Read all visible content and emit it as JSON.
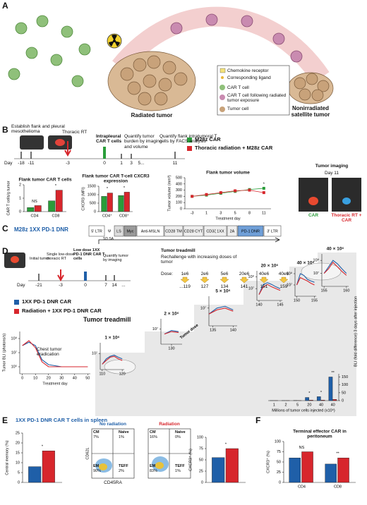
{
  "panels": {
    "A": {
      "letter": "A",
      "legend": [
        "Chemokine receptor",
        "Corresponding ligand",
        "CAR T cell",
        "CAR T cell following radiated tumor exposure",
        "Tumor cell"
      ],
      "radiated": "Radiated tumor",
      "satellite": "Nonirradiated satellite tumor"
    },
    "B": {
      "letter": "B",
      "events": [
        "Establish flank and pleural mesothelioma",
        "Thoracic RT",
        "Intrapleural CAR T cells",
        "Quantify tumor burden by imaging and volume",
        "Quantify flank intratumoral T cells by FACS analysis"
      ],
      "day": "Day",
      "days": [
        "-18",
        "-11",
        "-3",
        "0",
        "1",
        "3",
        "5...",
        "11"
      ],
      "imaging": "Tumor imaging",
      "imaging_day": "Day 11",
      "imaging_labels": [
        "CAR",
        "Thoracic RT + CAR"
      ]
    },
    "C": {
      "letter": "C",
      "name": "M28z 1XX PD-1 DNR",
      "elements": [
        "5' LTR",
        "Ψ",
        "LS",
        "Myc",
        "Anti-MSLN",
        "CD28 TM",
        "CD28 CYT",
        "CD3ζ 1XX",
        "2A",
        "PD-1 DNR",
        "3' LTR"
      ],
      "sites": "SD SA"
    },
    "D": {
      "letter": "D",
      "events": [
        "Initial tumor",
        "Single low-dose thoracic RT",
        "Low dose 1XX PD-1 DNR CAR T cells",
        "Quantify tumor by imaging"
      ],
      "day": "Day",
      "days": [
        "-21",
        "-3",
        "0",
        "7",
        "14",
        "..."
      ],
      "treadmill": "Tumor treadmill",
      "rechallenge": "Rechallenge with increasing doses of tumor",
      "dose": "Dose:",
      "doses": [
        "1e6",
        "2e6",
        "5e6",
        "20e6",
        "40e6",
        "40e6"
      ],
      "dose_days": [
        "...119",
        "127",
        "134",
        "141",
        "151",
        "159"
      ],
      "treadmill_label": "Tumor treadmill",
      "tumor_dose": "Tumor dose",
      "eradication": "Chest tumor eradication"
    },
    "E": {
      "letter": "E",
      "title": "1XX PD-1 DNR CAR T cells in spleen",
      "flow": {
        "ylabel": "CD62L",
        "xlabel": "CD45RA",
        "plots": [
          {
            "title": "No radiation",
            "quadrants": [
              [
                "CM",
                "7%"
              ],
              [
                "Naive",
                "1%"
              ],
              [
                "EM",
                "90%"
              ],
              [
                "TEFF",
                "2%"
              ]
            ]
          },
          {
            "title": "Radiation",
            "quadrants": [
              [
                "CM",
                "16%"
              ],
              [
                "Naive",
                "0%"
              ],
              [
                "EM",
                "83%"
              ],
              [
                "TEFF",
                "1%"
              ]
            ]
          }
        ]
      }
    },
    "F": {
      "letter": "F"
    }
  },
  "chart_data": [
    {
      "type": "bar",
      "title": "Flank tumor CAR T cells",
      "ylabel": "CAR T cells/g tumor",
      "categories": [
        "CD4",
        "CD8"
      ],
      "series": [
        {
          "color": "#2a9d3a",
          "values": [
            0.3,
            0.8
          ]
        },
        {
          "color": "#d7262c",
          "values": [
            0.45,
            1.6
          ]
        }
      ],
      "ylim": [
        0,
        2
      ],
      "yticks": [
        0,
        1,
        2
      ],
      "annotations": [
        "NS",
        "*"
      ]
    },
    {
      "type": "bar",
      "title": "Flank tumor CAR T-cell CXCR3 expression",
      "ylabel": "CXCR3 (MFI)",
      "categories": [
        "CD4⁺",
        "CD8⁺"
      ],
      "series": [
        {
          "color": "#2a9d3a",
          "values": [
            900,
            950
          ]
        },
        {
          "color": "#d7262c",
          "values": [
            1100,
            1150
          ]
        }
      ],
      "ylim": [
        0,
        1500
      ],
      "yticks": [
        0,
        500,
        1000,
        1500
      ],
      "annotations": [
        "*",
        "*"
      ]
    },
    {
      "type": "line",
      "title": "Flank tumor volume",
      "ylabel": "Tumor volume (mm³)",
      "xlabel": "Treatment day",
      "categories": [
        "-3",
        "1",
        "3",
        "5",
        "8",
        "11"
      ],
      "series": [
        {
          "name": "M28z CAR",
          "color": "#2a9d3a",
          "values": [
            200,
            220,
            250,
            280,
            310,
            330
          ]
        },
        {
          "name": "Thoracic radiation + M28z CAR",
          "color": "#d7262c",
          "values": [
            200,
            230,
            260,
            290,
            300,
            260
          ]
        }
      ],
      "ylim": [
        0,
        500
      ],
      "yticks": [
        0,
        100,
        200,
        300,
        400,
        500
      ],
      "markers": true,
      "annotations": [
        null,
        null,
        null,
        null,
        null,
        "*"
      ]
    },
    {
      "type": "line",
      "ylabel": "Tumor BLI (photons/s)",
      "xlabel": "Treatment day",
      "log": true,
      "x": [
        0,
        5,
        10,
        15,
        20,
        30,
        40,
        50
      ],
      "xlim": [
        -2,
        52
      ],
      "xticks": [
        0,
        10,
        20,
        30,
        40,
        50
      ],
      "series": [
        {
          "name": "1XX PD-1 DNR CAR",
          "color": "#1f5fa8",
          "values": [
            100000000,
            300000000,
            100000000,
            1000000,
            200000,
            100000,
            100000,
            100000
          ]
        },
        {
          "name": "Radiation + 1XX PD-1 DNR CAR",
          "color": "#d7262c",
          "values": [
            100000000,
            500000000,
            50000000,
            500000,
            100000,
            100000,
            100000,
            100000
          ]
        }
      ],
      "ylim": [
        10000,
        10000000000
      ],
      "yticks": [
        {
          "value": 100000,
          "label": "10⁵"
        },
        {
          "value": 10000000,
          "label": "10⁷"
        },
        {
          "value": 1000000000,
          "label": "10⁹"
        }
      ]
    },
    {
      "type": "line",
      "title": "1 × 10⁶",
      "log": true,
      "x": [
        110,
        112,
        114,
        116,
        118,
        120
      ],
      "xlim": [
        109,
        121
      ],
      "xticks": [
        110,
        120
      ],
      "series": [
        {
          "color": "#1f5fa8",
          "values": [
            100000,
            1000000,
            3000000,
            5000000,
            2000000,
            1000000
          ]
        },
        {
          "color": "#d7262c",
          "values": [
            100000,
            500000,
            2000000,
            3000000,
            1000000,
            500000
          ]
        }
      ],
      "ylim": [
        10000,
        1000000000
      ],
      "yticks": [
        {
          "value": 10000000,
          "label": "10⁷"
        }
      ]
    },
    {
      "type": "line",
      "title": "2 × 10⁶",
      "log": true,
      "x": [
        128,
        130,
        132
      ],
      "xlim": [
        127,
        133
      ],
      "xticks": [
        130
      ],
      "series": [
        {
          "color": "#1f5fa8",
          "values": [
            1000000,
            5000000,
            3000000
          ]
        },
        {
          "color": "#d7262c",
          "values": [
            1000000,
            3000000,
            2000000
          ]
        }
      ],
      "ylim": [
        10000,
        1000000000
      ],
      "yticks": [
        {
          "value": 10000000,
          "label": "10⁷"
        }
      ]
    },
    {
      "type": "line",
      "title": "5 × 10⁶",
      "log": true,
      "x": [
        134,
        136,
        138,
        140
      ],
      "xlim": [
        134,
        141
      ],
      "xticks": [
        135,
        140
      ],
      "series": [
        {
          "color": "#1f5fa8",
          "values": [
            1000000,
            10000000,
            20000000,
            5000000
          ]
        },
        {
          "color": "#d7262c",
          "values": [
            1000000,
            5000000,
            10000000,
            3000000
          ]
        }
      ],
      "ylim": [
        10000,
        1000000000
      ],
      "yticks": [
        {
          "value": 10000000,
          "label": "10⁷"
        }
      ]
    },
    {
      "type": "line",
      "title": "20 × 10⁶",
      "log": true,
      "x": [
        140,
        141,
        142,
        143,
        144,
        145
      ],
      "xlim": [
        139.5,
        145.5
      ],
      "xticks": [
        140,
        145
      ],
      "series": [
        {
          "color": "#1f5fa8",
          "values": [
            1000000,
            50000000,
            100000000,
            50000000,
            20000000,
            10000000
          ]
        },
        {
          "color": "#d7262c",
          "values": [
            1000000,
            20000000,
            50000000,
            20000000,
            10000000,
            5000000
          ]
        }
      ],
      "ylim": [
        100000,
        10000000000
      ],
      "yticks": [
        {
          "value": 10000000,
          "label": "10⁷"
        },
        {
          "value": 1000000000,
          "label": "10⁹"
        }
      ]
    },
    {
      "type": "line",
      "title": "40 × 10⁶",
      "log": true,
      "x": [
        150,
        151,
        152,
        153,
        154,
        155
      ],
      "xlim": [
        149.5,
        155.5
      ],
      "xticks": [
        150,
        155
      ],
      "series": [
        {
          "color": "#1f5fa8",
          "values": [
            10000000,
            1000000000,
            500000000,
            100000000,
            50000000,
            30000000
          ]
        },
        {
          "color": "#d7262c",
          "values": [
            10000000,
            200000000,
            100000000,
            50000000,
            20000000,
            10000000
          ]
        }
      ],
      "ylim": [
        100000,
        10000000000
      ],
      "yticks": [
        {
          "value": 10000000,
          "label": "10⁷"
        },
        {
          "value": 1000000000,
          "label": "10⁹"
        }
      ]
    },
    {
      "type": "line",
      "title": "40 × 10⁶",
      "log": true,
      "x": [
        155,
        156,
        157,
        158,
        159,
        160
      ],
      "xlim": [
        154.5,
        160.5
      ],
      "xticks": [
        155,
        160
      ],
      "series": [
        {
          "color": "#1f5fa8",
          "values": [
            10000000,
            100000000,
            1000000000,
            300000000,
            50000000,
            10000000
          ]
        },
        {
          "color": "#d7262c",
          "values": [
            10000000,
            50000000,
            500000000,
            100000000,
            20000000,
            5000000
          ]
        }
      ],
      "ylim": [
        100000,
        10000000000
      ],
      "yticks": [
        {
          "value": 10000000,
          "label": "10⁷"
        },
        {
          "value": 1000000000,
          "label": "10⁹"
        }
      ]
    },
    {
      "type": "bar",
      "xlabel": "Millions of tumor cells injected (x10⁶)",
      "ylabel": "BLI (fold difference) 3 days after injection",
      "yaxis_side": "right",
      "categories": [
        "1",
        "2",
        "5",
        "20",
        "40",
        "40"
      ],
      "series": [
        {
          "color": "#1f5fa8",
          "values": [
            0.5,
            0.5,
            1,
            20,
            25,
            150
          ]
        },
        {
          "color": "#d7262c",
          "values": [
            0.5,
            0.5,
            0.5,
            3,
            3,
            8
          ]
        }
      ],
      "ylim": [
        0,
        170
      ],
      "yticks": [
        0,
        50,
        100,
        150
      ],
      "annotations": [
        null,
        null,
        null,
        "*",
        "*",
        "**"
      ]
    },
    {
      "type": "bar",
      "ylabel": "Central memory (%)",
      "categories": [
        null
      ],
      "series": [
        {
          "color": "#1f5fa8",
          "values": [
            8
          ]
        },
        {
          "color": "#d7262c",
          "values": [
            16
          ]
        }
      ],
      "ylim": [
        0,
        25
      ],
      "yticks": [
        0,
        5,
        10,
        15,
        20,
        25
      ],
      "annotations": [
        "*"
      ]
    },
    {
      "type": "bar",
      "ylabel": "CXCR3⁺ (%)",
      "categories": [
        null
      ],
      "series": [
        {
          "color": "#1f5fa8",
          "values": [
            55
          ]
        },
        {
          "color": "#d7262c",
          "values": [
            75
          ]
        }
      ],
      "ylim": [
        0,
        100
      ],
      "yticks": [
        0,
        25,
        50,
        75,
        100
      ],
      "annotations": [
        "*"
      ]
    },
    {
      "type": "bar",
      "title": "Terminal effector CAR in peritoneum",
      "ylabel": "CXCR3⁺ (%)",
      "categories": [
        "CD4",
        "CD8"
      ],
      "series": [
        {
          "color": "#1f5fa8",
          "values": [
            60,
            45
          ]
        },
        {
          "color": "#d7262c",
          "values": [
            75,
            60
          ]
        }
      ],
      "ylim": [
        0,
        100
      ],
      "yticks": [
        0,
        25,
        50,
        75,
        100
      ],
      "annotations": [
        "NS",
        "**"
      ]
    }
  ]
}
